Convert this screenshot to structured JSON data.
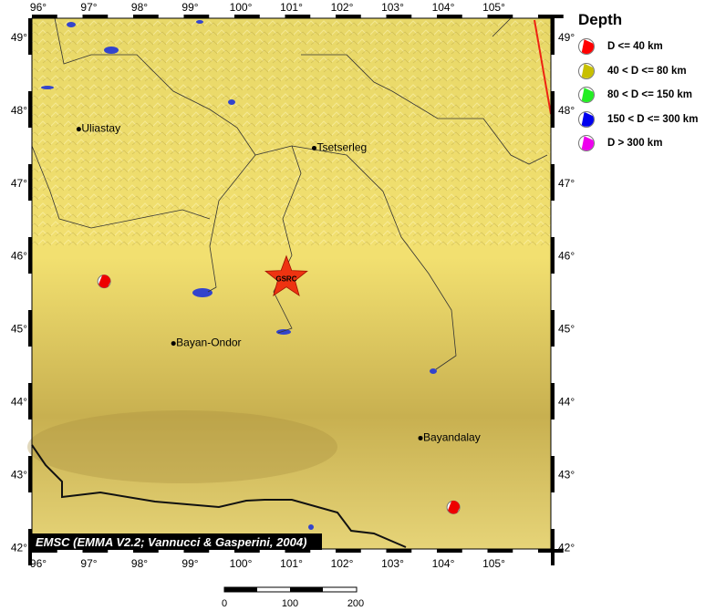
{
  "map": {
    "lon_ticks": [
      "96°",
      "97°",
      "98°",
      "99°",
      "100°",
      "101°",
      "102°",
      "103°",
      "104°",
      "105°"
    ],
    "lat_ticks": [
      "49°",
      "48°",
      "47°",
      "46°",
      "45°",
      "44°",
      "43°",
      "42°"
    ],
    "cities": [
      {
        "name": "Uliastay",
        "lon": 96.8,
        "lat": 47.74
      },
      {
        "name": "Tsetserleg",
        "lon": 101.45,
        "lat": 47.48
      },
      {
        "name": "Bayan-Ondor",
        "lon": 98.67,
        "lat": 44.8
      },
      {
        "name": "Bayandalay",
        "lon": 103.55,
        "lat": 43.5
      }
    ],
    "epicenter": {
      "label": "GSRC",
      "lon": 100.9,
      "lat": 45.7,
      "color": "#ee3311"
    },
    "events": [
      {
        "lon": 97.3,
        "lat": 45.65,
        "depth_class": "D <= 40 km"
      },
      {
        "lon": 104.2,
        "lat": 42.55,
        "depth_class": "D <= 40 km"
      }
    ],
    "credit": "EMSC (EMMA V2.2; Vannucci & Gasperini, 2004)",
    "scale": {
      "labels": [
        "0",
        "100",
        "200"
      ]
    }
  },
  "legend": {
    "title": "Depth",
    "items": [
      {
        "label": "D <= 40 km",
        "color": "#ff0000"
      },
      {
        "label": "40 < D <= 80 km",
        "color": "#c8c000"
      },
      {
        "label": "80 < D <= 150 km",
        "color": "#22ee22"
      },
      {
        "label": "150 < D <= 300 km",
        "color": "#0000ee"
      },
      {
        "label": "D > 300 km",
        "color": "#ee00ee"
      }
    ]
  }
}
